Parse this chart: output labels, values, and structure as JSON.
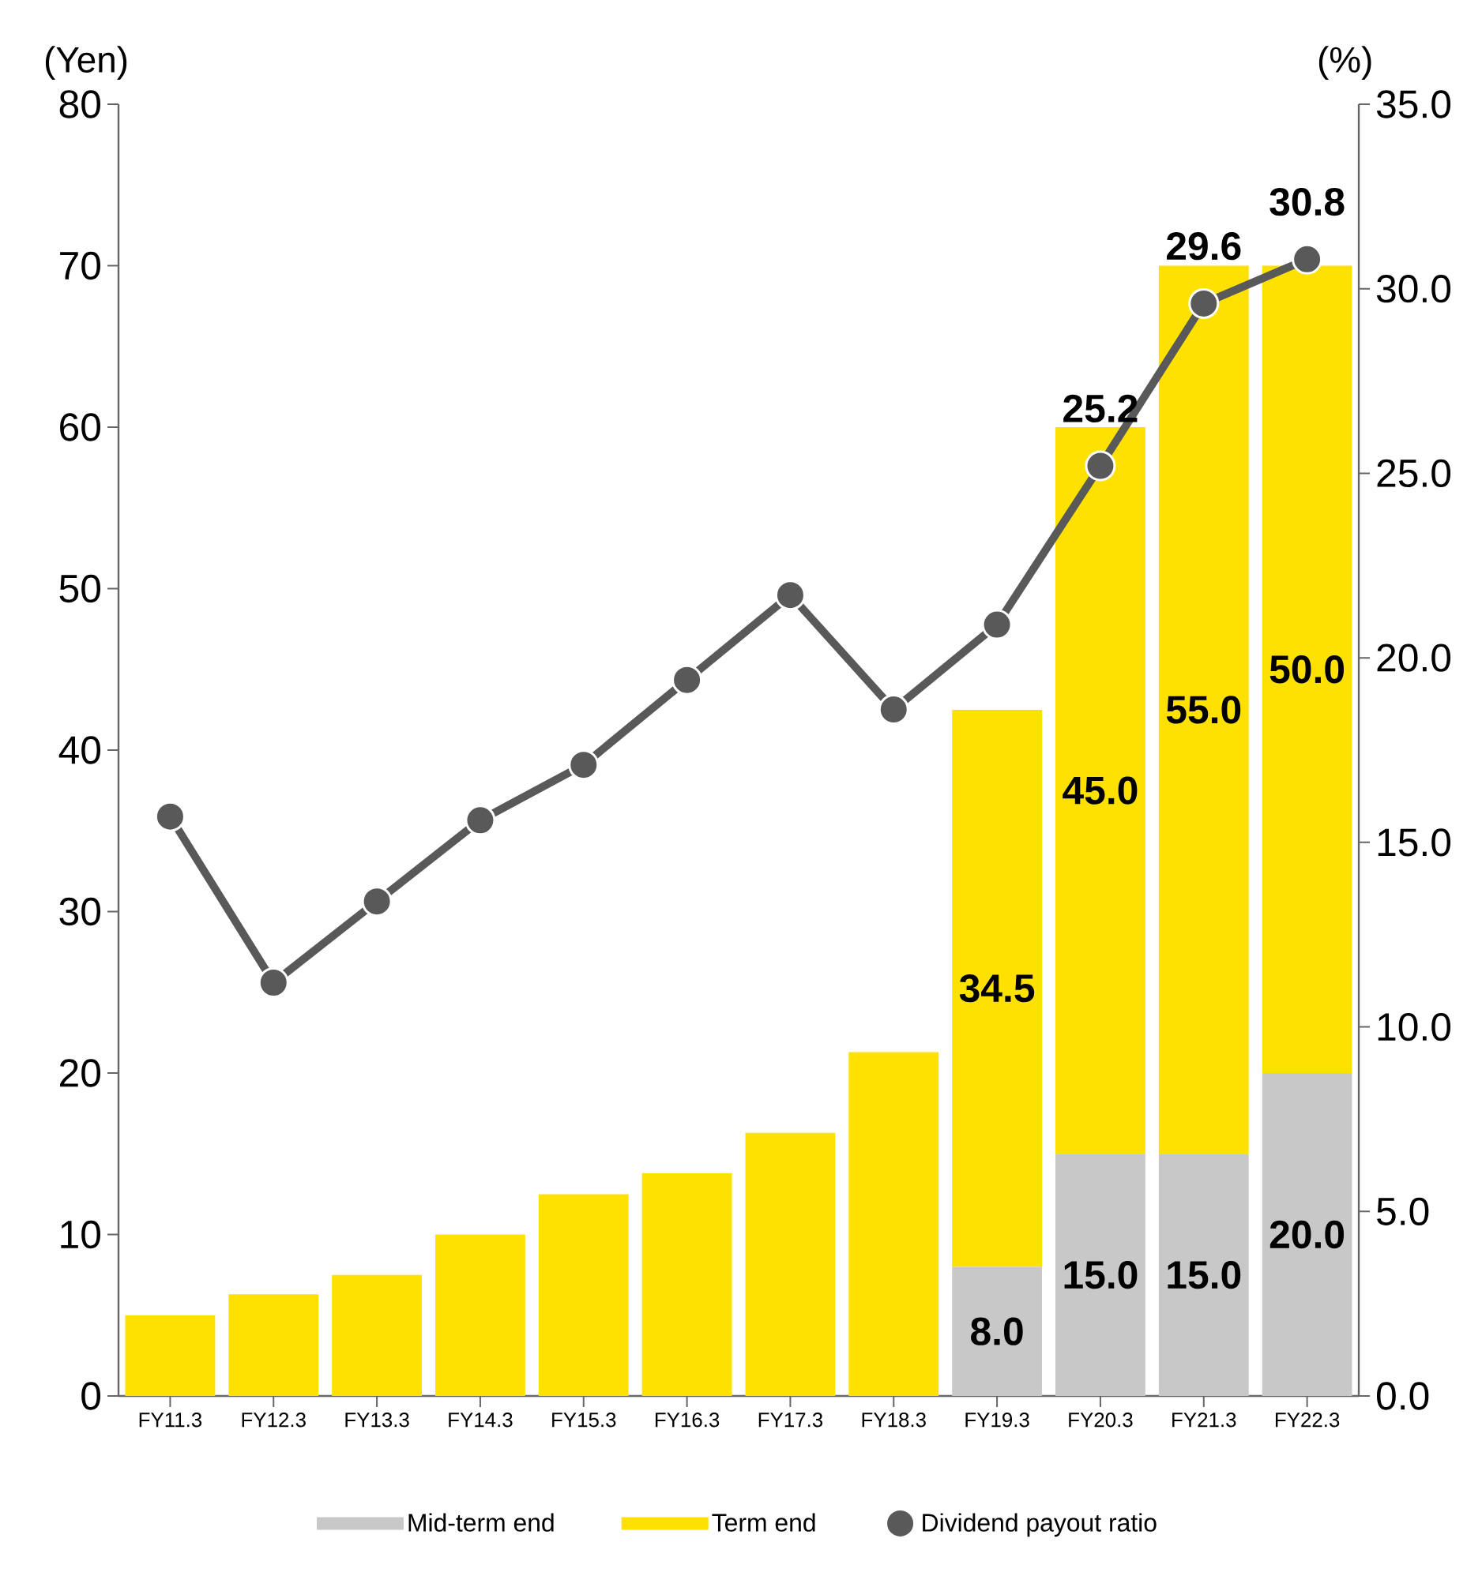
{
  "chart_data": {
    "type": "bar",
    "stacked": true,
    "ylabel": "(Yen)",
    "y2label": "(%)",
    "categories": [
      "FY11.3",
      "FY12.3",
      "FY13.3",
      "FY14.3",
      "FY15.3",
      "FY16.3",
      "FY17.3",
      "FY18.3",
      "FY19.3",
      "FY20.3",
      "FY21.3",
      "FY22.3"
    ],
    "series": [
      {
        "name": "Mid-term end",
        "color": "#c8c8c8",
        "values": [
          null,
          null,
          null,
          null,
          null,
          null,
          null,
          null,
          8.0,
          15.0,
          15.0,
          20.0
        ],
        "value_labels": [
          null,
          null,
          null,
          null,
          null,
          null,
          null,
          null,
          "8.0",
          "15.0",
          "15.0",
          "20.0"
        ]
      },
      {
        "name": "Term end",
        "color": "#ffe100",
        "values": [
          5.0,
          6.3,
          7.5,
          10.0,
          12.5,
          13.8,
          16.3,
          21.3,
          34.5,
          45.0,
          55.0,
          50.0
        ],
        "value_labels": [
          null,
          null,
          null,
          null,
          null,
          null,
          null,
          null,
          "34.5",
          "45.0",
          "55.0",
          "50.0"
        ]
      },
      {
        "name": "Dividend payout ratio",
        "type": "line",
        "axis": "y2",
        "color": "#595959",
        "values": [
          15.7,
          11.2,
          13.4,
          15.6,
          17.1,
          19.4,
          21.7,
          18.6,
          20.9,
          25.2,
          29.6,
          30.8
        ],
        "value_labels": [
          null,
          null,
          null,
          null,
          null,
          null,
          null,
          null,
          null,
          "25.2",
          "29.6",
          "30.8"
        ]
      }
    ],
    "marker": "circle",
    "ylim": [
      0,
      80
    ],
    "yticks": [
      0,
      10,
      20,
      30,
      40,
      50,
      60,
      70,
      80
    ],
    "y2lim": [
      0,
      35
    ],
    "y2ticks": [
      {
        "value": 0,
        "label": "0.0"
      },
      {
        "value": 5,
        "label": "5.0"
      },
      {
        "value": 10,
        "label": "10.0"
      },
      {
        "value": 15,
        "label": "15.0"
      },
      {
        "value": 20,
        "label": "20.0"
      },
      {
        "value": 25,
        "label": "25.0"
      },
      {
        "value": 30,
        "label": "30.0"
      },
      {
        "value": 35,
        "label": "35.0"
      }
    ],
    "grid": false,
    "legend": "bottom"
  }
}
